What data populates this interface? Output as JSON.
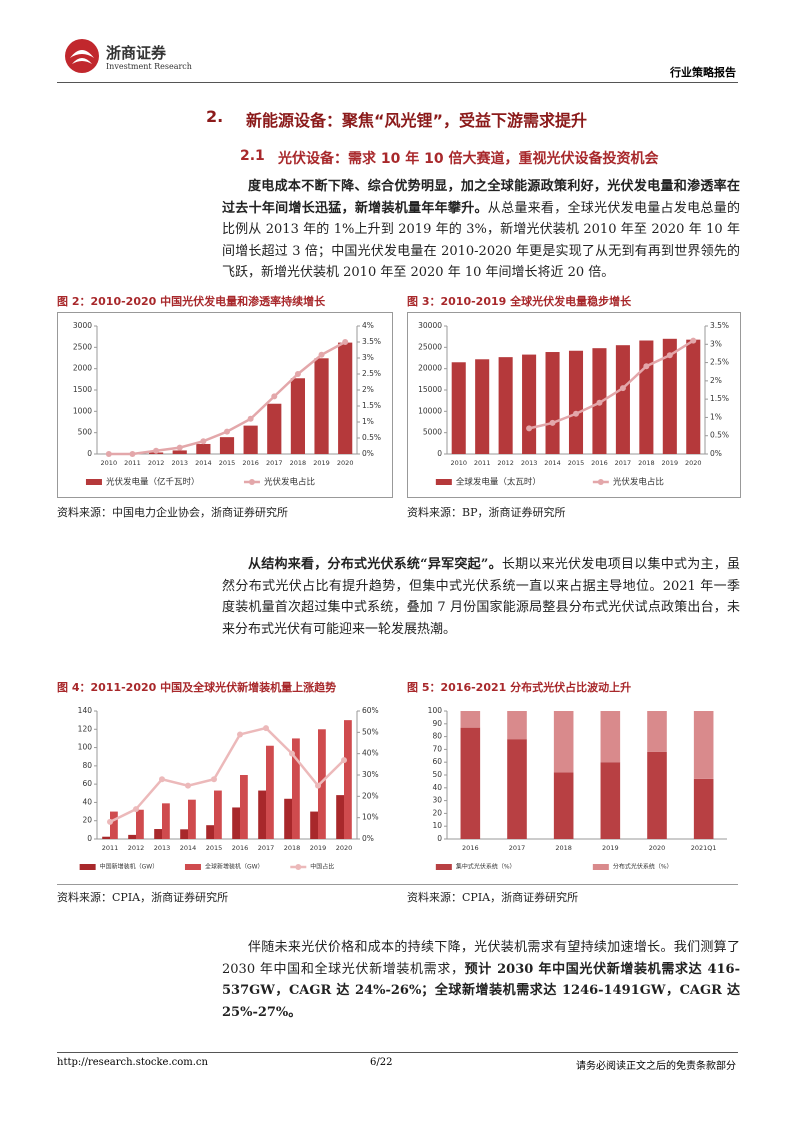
{
  "header": {
    "logo_name": "浙商证券",
    "logo_sub": "Investment Research",
    "report_type": "行业策略报告"
  },
  "section": {
    "number": "2.",
    "title": "新能源设备：聚焦“风光锂”，受益下游需求提升"
  },
  "subsection": {
    "number": "2.1",
    "title": "光伏设备：需求 10 年 10 倍大赛道，重视光伏设备投资机会"
  },
  "paragraphs": [
    [
      "度电成本不断下降、综合优势明显，加之全球能源政策利好，光伏发电量和渗透率在过去十年间增长迅猛，新增装机量年年攀升。",
      "从总量来看，全球光伏发电量占发电总量的比例从 2013 年的 1%上升到 2019 年的 3%，新增光伏装机 2010 年至 2020 年 10 年间增长超过 3 倍；中国光伏发电量在 2010-2020 年更是实现了从无到有再到世界领先的飞跃，新增光伏装机 2010 年至 2020 年 10 年间增长将近 20 倍。"
    ],
    [
      "从结构来看，分布式光伏系统“异军突起”。",
      "长期以来光伏发电项目以集中式为主，虽然分布式光伏占比有提升趋势，但集中式光伏系统一直以来占据主导地位。2021 年一季度装机量首次超过集中式系统，叠加 7 月份国家能源局整县分布式光伏试点政策出台，未来分布式光伏有可能迎来一轮发展热潮。"
    ],
    [
      "伴随未来光伏价格和成本的持续下降，光伏装机需求有望持续加速增长。我们测算了 2030 年中国和全球光伏新增装机需求，",
      "预计 2030 年中国光伏新增装机需求达 416-537GW，CAGR 达 24%-26%；全球新增装机需求达 1246-1491GW，CAGR 达 25%-27%。"
    ]
  ],
  "figures": [
    {
      "caption": "图 2：2010-2020 中国光伏发电量和渗透率持续增长",
      "source": "资料来源：中国电力企业协会，浙商证券研究所",
      "chart_data": {
        "type": "combo",
        "categories": [
          "2010",
          "2011",
          "2012",
          "2013",
          "2014",
          "2015",
          "2016",
          "2017",
          "2018",
          "2019",
          "2020"
        ],
        "series": [
          {
            "name": "光伏发电量（亿千瓦时）",
            "type": "bar",
            "color": "#b5393b",
            "values": [
              1,
              6,
              36,
              84,
              235,
              395,
              665,
              1178,
              1775,
              2243,
              2611
            ]
          },
          {
            "name": "光伏发电占比",
            "type": "line",
            "axis": "y2",
            "color": "#e3a7aa",
            "values": [
              0.0,
              0.0,
              0.1,
              0.2,
              0.4,
              0.7,
              1.1,
              1.8,
              2.5,
              3.1,
              3.5
            ]
          }
        ],
        "ylim": [
          0,
          3000
        ],
        "yticks": [
          0,
          500,
          1000,
          1500,
          2000,
          2500,
          3000
        ],
        "y2lim": [
          0,
          4
        ],
        "y2ticks": [
          {
            "value": 0,
            "label": "0%"
          },
          {
            "value": 0.5,
            "label": "0.5%"
          },
          {
            "value": 1,
            "label": "1%"
          },
          {
            "value": 1.5,
            "label": "1.5%"
          },
          {
            "value": 2,
            "label": "2%"
          },
          {
            "value": 2.5,
            "label": "2.5%"
          },
          {
            "value": 3,
            "label": "3%"
          },
          {
            "value": 3.5,
            "label": "3.5%"
          },
          {
            "value": 4,
            "label": "4%"
          }
        ]
      }
    },
    {
      "caption": "图 3：2010-2019 全球光伏发电量稳步增长",
      "source": "资料来源：BP，浙商证券研究所",
      "chart_data": {
        "type": "combo",
        "categories": [
          "2010",
          "2011",
          "2012",
          "2013",
          "2014",
          "2015",
          "2016",
          "2017",
          "2018",
          "2019",
          "2020"
        ],
        "series": [
          {
            "name": "全球发电量（太瓦时）",
            "type": "bar",
            "color": "#b5393b",
            "values": [
              21500,
              22200,
              22700,
              23300,
              23900,
              24200,
              24800,
              25500,
              26600,
              27000,
              26800
            ]
          },
          {
            "name": "光伏发电占比",
            "type": "line",
            "axis": "y2",
            "color": "#e3a7aa",
            "values": [
              null,
              null,
              null,
              0.7,
              0.85,
              1.1,
              1.4,
              1.8,
              2.4,
              2.7,
              3.1
            ]
          }
        ],
        "ylim": [
          0,
          30000
        ],
        "yticks": [
          0,
          5000,
          10000,
          15000,
          20000,
          25000,
          30000
        ],
        "y2lim": [
          0,
          3.5
        ],
        "y2ticks": [
          {
            "value": 0,
            "label": "0%"
          },
          {
            "value": 0.5,
            "label": "0.5%"
          },
          {
            "value": 1,
            "label": "1%"
          },
          {
            "value": 1.5,
            "label": "1.5%"
          },
          {
            "value": 2,
            "label": "2%"
          },
          {
            "value": 2.5,
            "label": "2.5%"
          },
          {
            "value": 3,
            "label": "3%"
          },
          {
            "value": 3.5,
            "label": "3.5%"
          }
        ]
      }
    },
    {
      "caption": "图 4：2011-2020 中国及全球光伏新增装机量上涨趋势",
      "source": "资料来源：CPIA，浙商证券研究所",
      "chart_data": {
        "type": "combo",
        "categories": [
          "2011",
          "2012",
          "2013",
          "2014",
          "2015",
          "2016",
          "2017",
          "2018",
          "2019",
          "2020"
        ],
        "series": [
          {
            "name": "中国新增装机（GW）",
            "type": "bar",
            "color": "#a8282b",
            "values": [
              2.5,
              4.5,
              10.9,
              10.6,
              15.1,
              34.5,
              53,
              44,
              30,
              48
            ]
          },
          {
            "name": "全球新增装机（GW）",
            "type": "bar",
            "color": "#cf4b4e",
            "values": [
              30,
              32,
              39,
              43,
              53,
              70,
              102,
              110,
              120,
              130
            ]
          },
          {
            "name": "中国占比",
            "type": "line",
            "axis": "y2",
            "color": "#ecb9ba",
            "values": [
              8,
              14,
              28,
              25,
              28,
              49,
              52,
              40,
              25,
              37
            ]
          }
        ],
        "ylim": [
          0,
          140
        ],
        "yticks": [
          0,
          20,
          40,
          60,
          80,
          100,
          120,
          140
        ],
        "y2lim": [
          0,
          60
        ],
        "y2ticks": [
          {
            "value": 0,
            "label": "0%"
          },
          {
            "value": 10,
            "label": "10%"
          },
          {
            "value": 20,
            "label": "20%"
          },
          {
            "value": 30,
            "label": "30%"
          },
          {
            "value": 40,
            "label": "40%"
          },
          {
            "value": 50,
            "label": "50%"
          },
          {
            "value": 60,
            "label": "60%"
          }
        ]
      }
    },
    {
      "caption": "图 5：2016-2021 分布式光伏占比波动上升",
      "source": "资料来源：CPIA，浙商证券研究所",
      "chart_data": {
        "type": "stacked-bar",
        "categories": [
          "2016",
          "2017",
          "2018",
          "2019",
          "2020",
          "2021Q1"
        ],
        "series": [
          {
            "name": "集中式光伏系统（%）",
            "type": "bar",
            "color": "#b84043",
            "values": [
              87,
              78,
              52,
              60,
              68,
              47
            ]
          },
          {
            "name": "分布式光伏系统（%）",
            "type": "bar",
            "color": "#d98a8c",
            "values": [
              13,
              22,
              48,
              40,
              32,
              53
            ]
          }
        ],
        "ylim": [
          0,
          100
        ],
        "yticks": [
          0,
          10,
          20,
          30,
          40,
          50,
          60,
          70,
          80,
          90,
          100
        ]
      }
    }
  ],
  "footer": {
    "url": "http://research.stocke.com.cn",
    "page": "6/22",
    "disclaimer": "请务必阅读正文之后的免责条款部分"
  }
}
